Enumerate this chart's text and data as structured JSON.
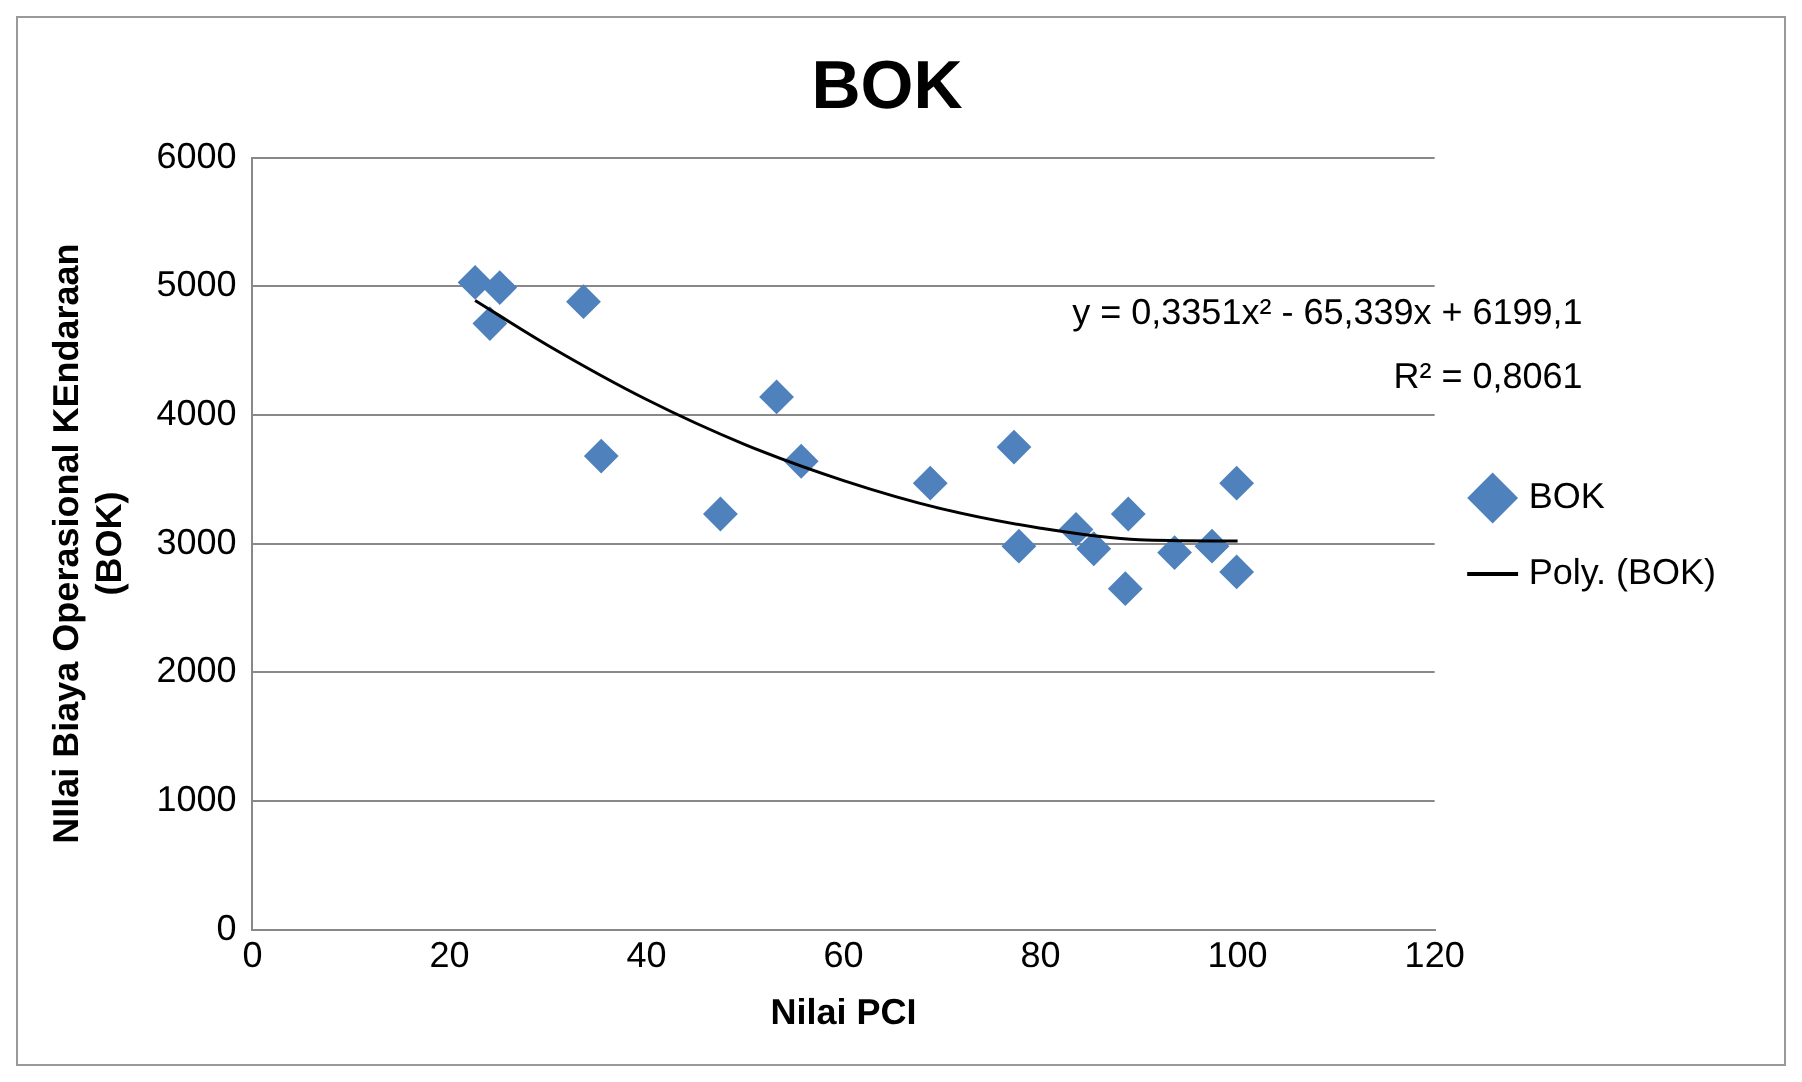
{
  "chart_data": {
    "type": "scatter",
    "title": "BOK",
    "xlabel": "Nilai PCI",
    "ylabel": "NIlai Biaya Operasional KEndaraan (BOK)",
    "xlim": [
      0,
      120
    ],
    "xticks": [
      0,
      20,
      40,
      60,
      80,
      100,
      120
    ],
    "ylim": [
      0,
      6000
    ],
    "yticks": [
      0,
      1000,
      2000,
      3000,
      4000,
      5000,
      6000
    ],
    "grid": "y",
    "legend": "right",
    "marker": "diamond",
    "annotations": [
      "y = 0,3351x² - 65,339x + 6199,1",
      "R² = 0,8061"
    ],
    "series": [
      {
        "name": "BOK",
        "type": "scatter",
        "color": "#4f81bd",
        "x": [
          22.6,
          25.1,
          24.1,
          33.6,
          35.4,
          47.5,
          53.2,
          55.7,
          68.8,
          77.3,
          77.8,
          83.6,
          85.4,
          88.9,
          88.6,
          93.6,
          97.4,
          99.9,
          99.9
        ],
        "values": [
          5030,
          4990,
          4710,
          4880,
          3680,
          3230,
          4140,
          3640,
          3470,
          3750,
          2980,
          3110,
          2960,
          3230,
          2650,
          2930,
          2980,
          3470,
          2780
        ]
      },
      {
        "name": "Poly. (BOK)",
        "type": "line",
        "color": "#000000",
        "line_style": "solid",
        "marker": "none",
        "x": [
          22.6,
          30,
          40,
          50,
          60,
          70,
          80,
          90,
          100
        ],
        "values": [
          4890,
          4540,
          4120,
          3770,
          3490,
          3270,
          3120,
          3030,
          3020
        ]
      }
    ]
  }
}
